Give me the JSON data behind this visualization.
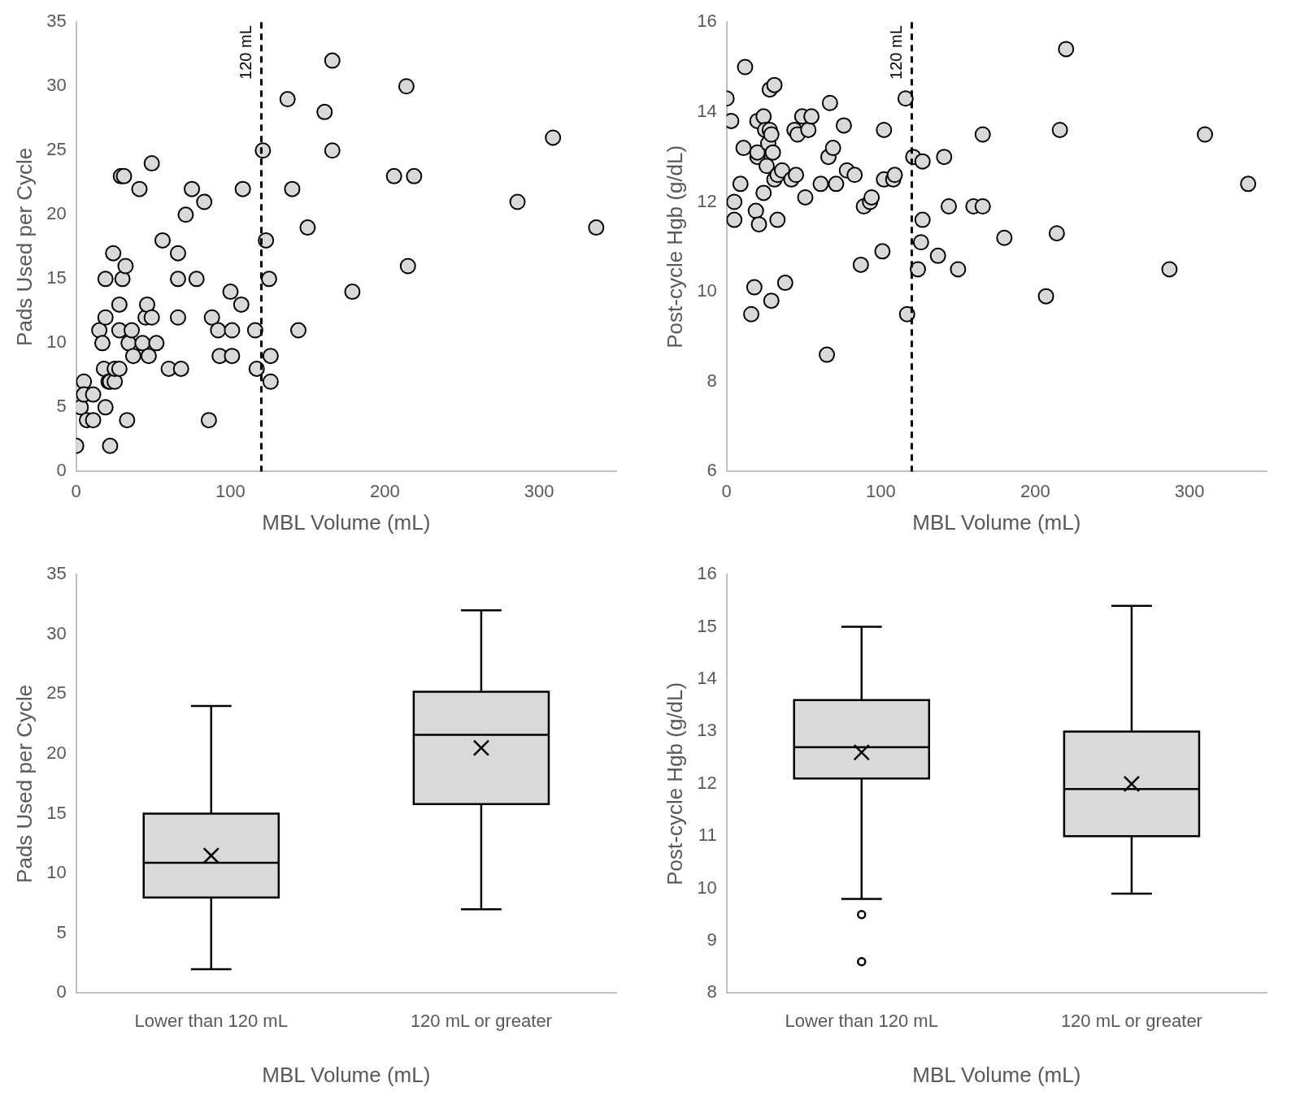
{
  "chart_data": [
    {
      "type": "scatter",
      "xlabel": "MBL Volume (mL)",
      "ylabel": "Pads Used per Cycle",
      "xlim": [
        0,
        350
      ],
      "xticks": [
        0,
        100,
        200,
        300
      ],
      "ylim": [
        0,
        35
      ],
      "yticks": [
        0,
        5,
        10,
        15,
        20,
        25,
        30,
        35
      ],
      "marker": "circle",
      "ref_lines": [
        {
          "axis": "x",
          "value": 120,
          "label": "120 mL",
          "color": "#000000",
          "line_style": "dashed"
        }
      ],
      "series": [
        {
          "color": "#d9d9d9",
          "x": [
            0,
            3,
            5,
            5,
            7,
            11,
            11,
            15,
            17,
            18,
            19,
            19,
            19,
            21,
            22,
            22,
            24,
            25,
            25,
            28,
            28,
            28,
            29,
            30,
            31,
            32,
            33,
            34,
            36,
            37,
            41,
            43,
            45,
            46,
            47,
            49,
            49,
            52,
            56,
            60,
            66,
            66,
            66,
            68,
            71,
            75,
            78,
            83,
            86,
            88,
            92,
            93,
            100,
            101,
            101,
            107,
            108,
            116,
            117,
            121,
            123,
            125,
            126,
            126,
            137,
            140,
            144,
            150,
            161,
            166,
            166,
            179,
            206,
            214,
            215,
            219,
            286,
            309,
            337
          ],
          "values": [
            2,
            5,
            7,
            6,
            4,
            4,
            6,
            11,
            10,
            8,
            12,
            5,
            15,
            7,
            2,
            7,
            17,
            7,
            8,
            11,
            13,
            8,
            23,
            15,
            23,
            16,
            4,
            10,
            11,
            9,
            22,
            10,
            12,
            13,
            9,
            12,
            24,
            10,
            18,
            8,
            17,
            15,
            12,
            8,
            20,
            22,
            15,
            21,
            4,
            12,
            11,
            9,
            14,
            9,
            11,
            13,
            22,
            11,
            8,
            25,
            18,
            15,
            9,
            7,
            29,
            22,
            11,
            19,
            28,
            32,
            25,
            14,
            23,
            30,
            16,
            23,
            21,
            26,
            19
          ]
        }
      ]
    },
    {
      "type": "scatter",
      "xlabel": "MBL Volume (mL)",
      "ylabel": "Post-cycle Hgb (g/dL)",
      "xlim": [
        0,
        350
      ],
      "xticks": [
        0,
        100,
        200,
        300
      ],
      "ylim": [
        6,
        16
      ],
      "yticks": [
        6,
        8,
        10,
        12,
        14,
        16
      ],
      "marker": "circle",
      "ref_lines": [
        {
          "axis": "x",
          "value": 120,
          "label": "120 mL",
          "color": "#000000",
          "line_style": "dashed"
        }
      ],
      "series": [
        {
          "color": "#d9d9d9",
          "x": [
            0,
            3,
            5,
            5,
            9,
            11,
            12,
            16,
            18,
            19,
            20,
            20,
            20,
            21,
            24,
            24,
            25,
            26,
            27,
            28,
            28,
            29,
            29,
            30,
            31,
            31,
            33,
            33,
            36,
            38,
            42,
            44,
            45,
            46,
            49,
            51,
            53,
            55,
            61,
            65,
            66,
            67,
            69,
            71,
            76,
            78,
            83,
            87,
            89,
            93,
            94,
            101,
            102,
            102,
            108,
            109,
            116,
            117,
            121,
            124,
            126,
            127,
            127,
            137,
            141,
            144,
            150,
            160,
            166,
            166,
            180,
            207,
            214,
            216,
            220,
            287,
            310,
            338
          ],
          "values": [
            14.3,
            13.8,
            11.6,
            12.0,
            12.4,
            13.2,
            15.0,
            9.5,
            10.1,
            11.8,
            13.0,
            13.8,
            13.1,
            11.5,
            13.9,
            12.2,
            13.6,
            12.8,
            13.3,
            14.5,
            13.6,
            9.8,
            13.5,
            13.1,
            14.6,
            12.5,
            11.6,
            12.6,
            12.7,
            10.2,
            12.5,
            13.6,
            12.6,
            13.5,
            13.9,
            12.1,
            13.6,
            13.9,
            12.4,
            8.6,
            13.0,
            14.2,
            13.2,
            12.4,
            13.7,
            12.7,
            12.6,
            10.6,
            11.9,
            12.0,
            12.1,
            10.9,
            13.6,
            12.5,
            12.5,
            12.6,
            14.3,
            9.5,
            13.0,
            10.5,
            11.1,
            12.9,
            11.6,
            10.8,
            13.0,
            11.9,
            10.5,
            11.9,
            11.9,
            13.5,
            11.2,
            9.9,
            11.3,
            13.6,
            15.4,
            10.5,
            13.5,
            12.4
          ]
        }
      ]
    },
    {
      "type": "box",
      "xlabel": "MBL Volume (mL)",
      "ylabel": "Pads Used per Cycle",
      "categories": [
        "Lower than 120 mL",
        "120 mL or greater"
      ],
      "ylim": [
        0,
        35
      ],
      "yticks": [
        0,
        5,
        10,
        15,
        20,
        25,
        30,
        35
      ],
      "series": [
        {
          "color": "#d9d9d9",
          "boxes": [
            {
              "low": 2,
              "q1": 8,
              "median": 10.9,
              "q3": 15,
              "high": 24,
              "mean": 11.5
            },
            {
              "low": 7,
              "q1": 15.8,
              "median": 21.6,
              "q3": 25.2,
              "high": 32,
              "mean": 20.5
            }
          ]
        }
      ]
    },
    {
      "type": "box",
      "xlabel": "MBL Volume (mL)",
      "ylabel": "Post-cycle Hgb (g/dL)",
      "categories": [
        "Lower than 120 mL",
        "120 mL or greater"
      ],
      "ylim": [
        8,
        16
      ],
      "yticks": [
        8,
        9,
        10,
        11,
        12,
        13,
        14,
        15,
        16
      ],
      "series": [
        {
          "color": "#d9d9d9",
          "boxes": [
            {
              "low": 9.8,
              "q1": 12.1,
              "median": 12.7,
              "q3": 13.6,
              "high": 15.0,
              "mean": 12.6,
              "outliers": [
                9.5,
                8.6
              ]
            },
            {
              "low": 9.9,
              "q1": 11.0,
              "median": 11.9,
              "q3": 13.0,
              "high": 15.4,
              "mean": 12.0
            }
          ]
        }
      ]
    }
  ]
}
